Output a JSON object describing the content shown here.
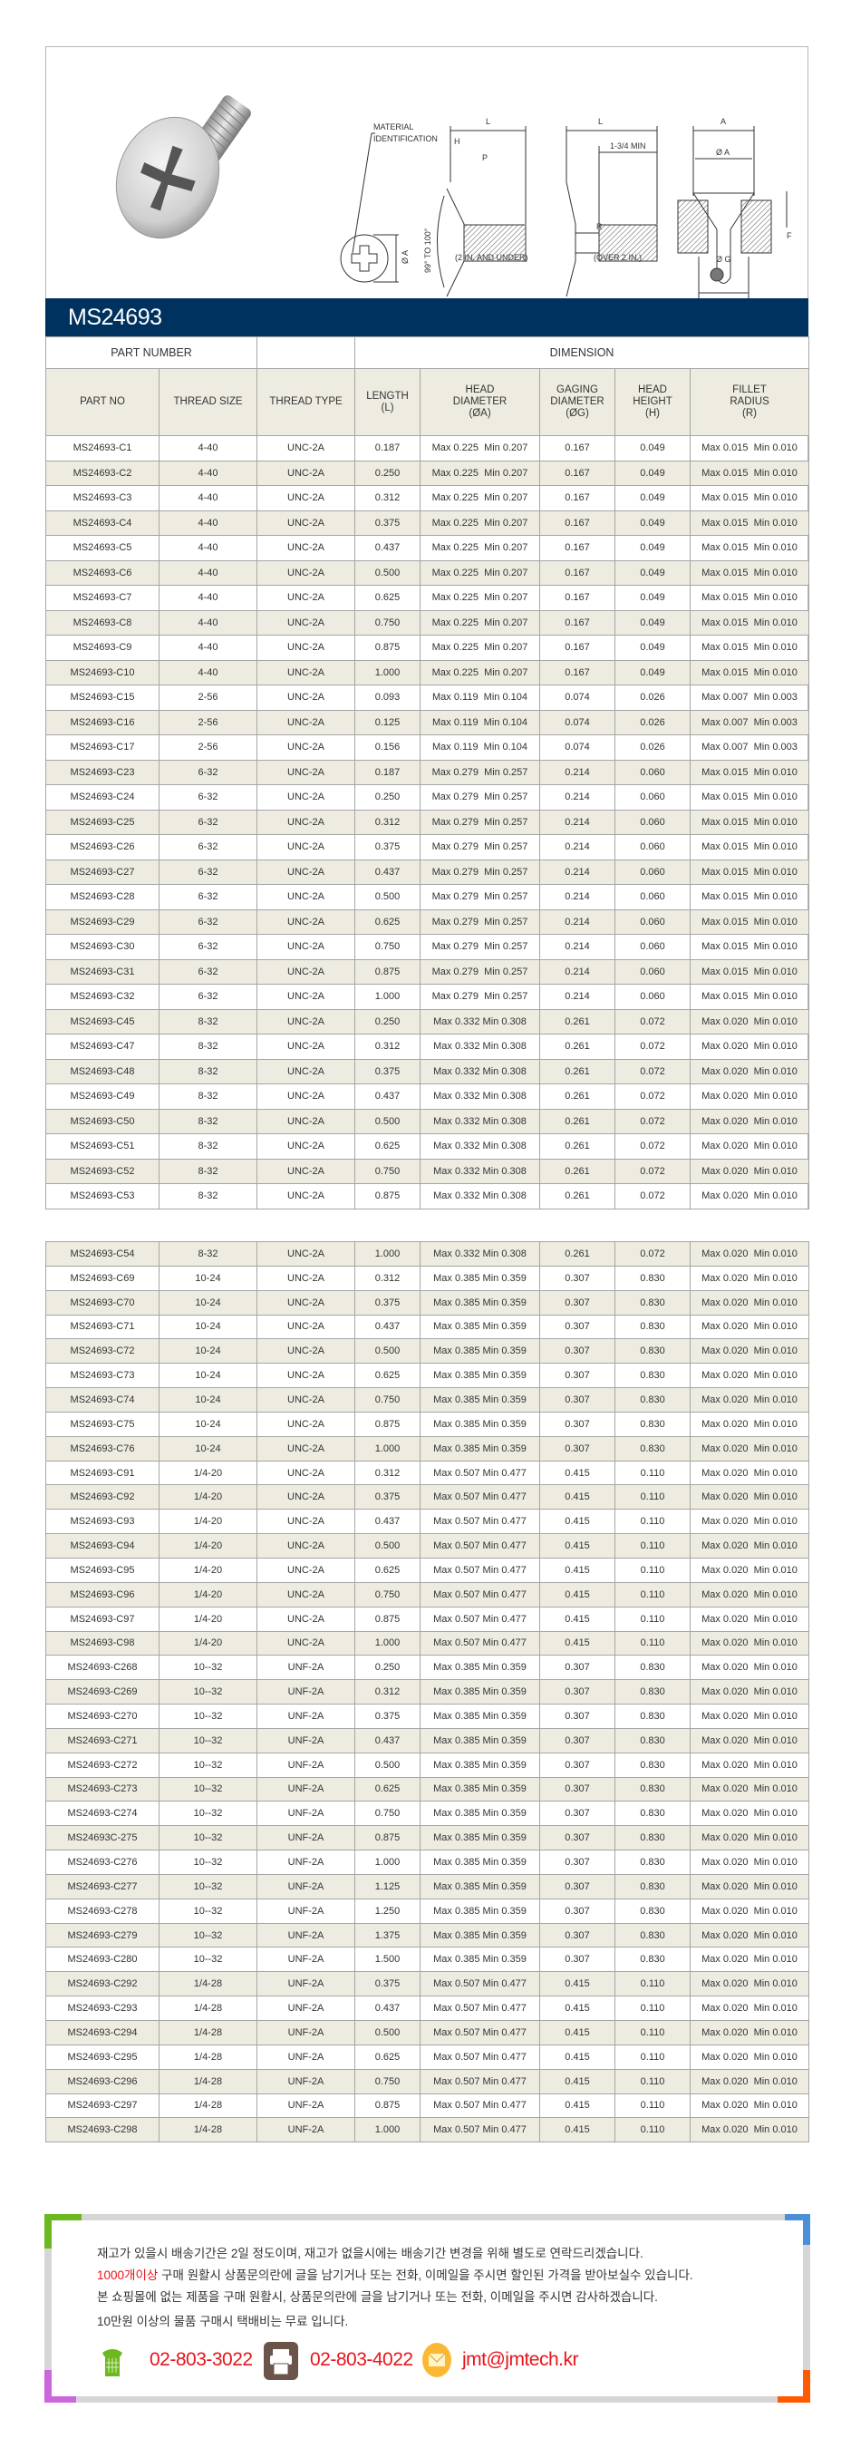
{
  "diagram": {
    "material_identification_1": "MATERIAL",
    "material_identification_2": "IDENTIFICATION",
    "label_L": "L",
    "label_H": "H",
    "label_P": "P",
    "label_A": "Ø A",
    "label_angle": "99° TO 100°",
    "label_under": "(2 IN. AND UNDER)",
    "label_min": "1-3/4 MIN",
    "label_R": "R",
    "label_over": "(OVER 2 IN.)",
    "label_A_top": "A",
    "label_G": "Ø G",
    "label_F": "F"
  },
  "banner": {
    "title": "MS24693"
  },
  "table": {
    "group_headers": {
      "part_number": "PART NUMBER",
      "empty": "",
      "dimension": "DIMENSION"
    },
    "columns": [
      "PART NO",
      "THREAD SIZE",
      "THREAD TYPE",
      "LENGTH\n(L)",
      "HEAD\nDIAMETER\n(ØA)",
      "GAGING\nDIAMETER\n(ØG)",
      "HEAD\nHEIGHT\n(H)",
      "FILLET\nRADIUS\n(R)"
    ],
    "rows_section1": [
      [
        "MS24693-C1",
        "4-40",
        "UNC-2A",
        "0.187",
        "Max 0.225  Min 0.207",
        "0.167",
        "0.049",
        "Max 0.015  Min 0.010"
      ],
      [
        "MS24693-C2",
        "4-40",
        "UNC-2A",
        "0.250",
        "Max 0.225  Min 0.207",
        "0.167",
        "0.049",
        "Max 0.015  Min 0.010"
      ],
      [
        "MS24693-C3",
        "4-40",
        "UNC-2A",
        "0.312",
        "Max 0.225  Min 0.207",
        "0.167",
        "0.049",
        "Max 0.015  Min 0.010"
      ],
      [
        "MS24693-C4",
        "4-40",
        "UNC-2A",
        "0.375",
        "Max 0.225  Min 0.207",
        "0.167",
        "0.049",
        "Max 0.015  Min 0.010"
      ],
      [
        "MS24693-C5",
        "4-40",
        "UNC-2A",
        "0.437",
        "Max 0.225  Min 0.207",
        "0.167",
        "0.049",
        "Max 0.015  Min 0.010"
      ],
      [
        "MS24693-C6",
        "4-40",
        "UNC-2A",
        "0.500",
        "Max 0.225  Min 0.207",
        "0.167",
        "0.049",
        "Max 0.015  Min 0.010"
      ],
      [
        "MS24693-C7",
        "4-40",
        "UNC-2A",
        "0.625",
        "Max 0.225  Min 0.207",
        "0.167",
        "0.049",
        "Max 0.015  Min 0.010"
      ],
      [
        "MS24693-C8",
        "4-40",
        "UNC-2A",
        "0.750",
        "Max 0.225  Min 0.207",
        "0.167",
        "0.049",
        "Max 0.015  Min 0.010"
      ],
      [
        "MS24693-C9",
        "4-40",
        "UNC-2A",
        "0.875",
        "Max 0.225  Min 0.207",
        "0.167",
        "0.049",
        "Max 0.015  Min 0.010"
      ],
      [
        "MS24693-C10",
        "4-40",
        "UNC-2A",
        "1.000",
        "Max 0.225  Min 0.207",
        "0.167",
        "0.049",
        "Max 0.015  Min 0.010"
      ],
      [
        "MS24693-C15",
        "2-56",
        "UNC-2A",
        "0.093",
        "Max 0.119  Min 0.104",
        "0.074",
        "0.026",
        "Max 0.007  Min 0.003"
      ],
      [
        "MS24693-C16",
        "2-56",
        "UNC-2A",
        "0.125",
        "Max 0.119  Min 0.104",
        "0.074",
        "0.026",
        "Max 0.007  Min 0.003"
      ],
      [
        "MS24693-C17",
        "2-56",
        "UNC-2A",
        "0.156",
        "Max 0.119  Min 0.104",
        "0.074",
        "0.026",
        "Max 0.007  Min 0.003"
      ],
      [
        "MS24693-C23",
        "6-32",
        "UNC-2A",
        "0.187",
        "Max 0.279  Min 0.257",
        "0.214",
        "0.060",
        "Max 0.015  Min 0.010"
      ],
      [
        "MS24693-C24",
        "6-32",
        "UNC-2A",
        "0.250",
        "Max 0.279  Min 0.257",
        "0.214",
        "0.060",
        "Max 0.015  Min 0.010"
      ],
      [
        "MS24693-C25",
        "6-32",
        "UNC-2A",
        "0.312",
        "Max 0.279  Min 0.257",
        "0.214",
        "0.060",
        "Max 0.015  Min 0.010"
      ],
      [
        "MS24693-C26",
        "6-32",
        "UNC-2A",
        "0.375",
        "Max 0.279  Min 0.257",
        "0.214",
        "0.060",
        "Max 0.015  Min 0.010"
      ],
      [
        "MS24693-C27",
        "6-32",
        "UNC-2A",
        "0.437",
        "Max 0.279  Min 0.257",
        "0.214",
        "0.060",
        "Max 0.015  Min 0.010"
      ],
      [
        "MS24693-C28",
        "6-32",
        "UNC-2A",
        "0.500",
        "Max 0.279  Min 0.257",
        "0.214",
        "0.060",
        "Max 0.015  Min 0.010"
      ],
      [
        "MS24693-C29",
        "6-32",
        "UNC-2A",
        "0.625",
        "Max 0.279  Min 0.257",
        "0.214",
        "0.060",
        "Max 0.015  Min 0.010"
      ],
      [
        "MS24693-C30",
        "6-32",
        "UNC-2A",
        "0.750",
        "Max 0.279  Min 0.257",
        "0.214",
        "0.060",
        "Max 0.015  Min 0.010"
      ],
      [
        "MS24693-C31",
        "6-32",
        "UNC-2A",
        "0.875",
        "Max 0.279  Min 0.257",
        "0.214",
        "0.060",
        "Max 0.015  Min 0.010"
      ],
      [
        "MS24693-C32",
        "6-32",
        "UNC-2A",
        "1.000",
        "Max 0.279  Min 0.257",
        "0.214",
        "0.060",
        "Max 0.015  Min 0.010"
      ],
      [
        "MS24693-C45",
        "8-32",
        "UNC-2A",
        "0.250",
        "Max 0.332 Min 0.308",
        "0.261",
        "0.072",
        "Max 0.020  Min 0.010"
      ],
      [
        "MS24693-C47",
        "8-32",
        "UNC-2A",
        "0.312",
        "Max 0.332 Min 0.308",
        "0.261",
        "0.072",
        "Max 0.020  Min 0.010"
      ],
      [
        "MS24693-C48",
        "8-32",
        "UNC-2A",
        "0.375",
        "Max 0.332 Min 0.308",
        "0.261",
        "0.072",
        "Max 0.020  Min 0.010"
      ],
      [
        "MS24693-C49",
        "8-32",
        "UNC-2A",
        "0.437",
        "Max 0.332 Min 0.308",
        "0.261",
        "0.072",
        "Max 0.020  Min 0.010"
      ],
      [
        "MS24693-C50",
        "8-32",
        "UNC-2A",
        "0.500",
        "Max 0.332 Min 0.308",
        "0.261",
        "0.072",
        "Max 0.020  Min 0.010"
      ],
      [
        "MS24693-C51",
        "8-32",
        "UNC-2A",
        "0.625",
        "Max 0.332 Min 0.308",
        "0.261",
        "0.072",
        "Max 0.020  Min 0.010"
      ],
      [
        "MS24693-C52",
        "8-32",
        "UNC-2A",
        "0.750",
        "Max 0.332 Min 0.308",
        "0.261",
        "0.072",
        "Max 0.020  Min 0.010"
      ],
      [
        "MS24693-C53",
        "8-32",
        "UNC-2A",
        "0.875",
        "Max 0.332 Min 0.308",
        "0.261",
        "0.072",
        "Max 0.020  Min 0.010"
      ]
    ],
    "rows_section2": [
      [
        "MS24693-C54",
        "8-32",
        "UNC-2A",
        "1.000",
        "Max 0.332 Min 0.308",
        "0.261",
        "0.072",
        "Max 0.020  Min 0.010"
      ],
      [
        "MS24693-C69",
        "10-24",
        "UNC-2A",
        "0.312",
        "Max 0.385 Min 0.359",
        "0.307",
        "0.830",
        "Max 0.020  Min 0.010"
      ],
      [
        "MS24693-C70",
        "10-24",
        "UNC-2A",
        "0.375",
        "Max 0.385 Min 0.359",
        "0.307",
        "0.830",
        "Max 0.020  Min 0.010"
      ],
      [
        "MS24693-C71",
        "10-24",
        "UNC-2A",
        "0.437",
        "Max 0.385 Min 0.359",
        "0.307",
        "0.830",
        "Max 0.020  Min 0.010"
      ],
      [
        "MS24693-C72",
        "10-24",
        "UNC-2A",
        "0.500",
        "Max 0.385 Min 0.359",
        "0.307",
        "0.830",
        "Max 0.020  Min 0.010"
      ],
      [
        "MS24693-C73",
        "10-24",
        "UNC-2A",
        "0.625",
        "Max 0.385 Min 0.359",
        "0.307",
        "0.830",
        "Max 0.020  Min 0.010"
      ],
      [
        "MS24693-C74",
        "10-24",
        "UNC-2A",
        "0.750",
        "Max 0.385 Min 0.359",
        "0.307",
        "0.830",
        "Max 0.020  Min 0.010"
      ],
      [
        "MS24693-C75",
        "10-24",
        "UNC-2A",
        "0.875",
        "Max 0.385 Min 0.359",
        "0.307",
        "0.830",
        "Max 0.020  Min 0.010"
      ],
      [
        "MS24693-C76",
        "10-24",
        "UNC-2A",
        "1.000",
        "Max 0.385 Min 0.359",
        "0.307",
        "0.830",
        "Max 0.020  Min 0.010"
      ],
      [
        "MS24693-C91",
        "1/4-20",
        "UNC-2A",
        "0.312",
        "Max 0.507 Min 0.477",
        "0.415",
        "0.110",
        "Max 0.020  Min 0.010"
      ],
      [
        "MS24693-C92",
        "1/4-20",
        "UNC-2A",
        "0.375",
        "Max 0.507 Min 0.477",
        "0.415",
        "0.110",
        "Max 0.020  Min 0.010"
      ],
      [
        "MS24693-C93",
        "1/4-20",
        "UNC-2A",
        "0.437",
        "Max 0.507 Min 0.477",
        "0.415",
        "0.110",
        "Max 0.020  Min 0.010"
      ],
      [
        "MS24693-C94",
        "1/4-20",
        "UNC-2A",
        "0.500",
        "Max 0.507 Min 0.477",
        "0.415",
        "0.110",
        "Max 0.020  Min 0.010"
      ],
      [
        "MS24693-C95",
        "1/4-20",
        "UNC-2A",
        "0.625",
        "Max 0.507 Min 0.477",
        "0.415",
        "0.110",
        "Max 0.020  Min 0.010"
      ],
      [
        "MS24693-C96",
        "1/4-20",
        "UNC-2A",
        "0.750",
        "Max 0.507 Min 0.477",
        "0.415",
        "0.110",
        "Max 0.020  Min 0.010"
      ],
      [
        "MS24693-C97",
        "1/4-20",
        "UNC-2A",
        "0.875",
        "Max 0.507 Min 0.477",
        "0.415",
        "0.110",
        "Max 0.020  Min 0.010"
      ],
      [
        "MS24693-C98",
        "1/4-20",
        "UNC-2A",
        "1.000",
        "Max 0.507 Min 0.477",
        "0.415",
        "0.110",
        "Max 0.020  Min 0.010"
      ],
      [
        "MS24693-C268",
        "10--32",
        "UNF-2A",
        "0.250",
        "Max 0.385 Min 0.359",
        "0.307",
        "0.830",
        "Max 0.020  Min 0.010"
      ],
      [
        "MS24693-C269",
        "10--32",
        "UNF-2A",
        "0.312",
        "Max 0.385 Min 0.359",
        "0.307",
        "0.830",
        "Max 0.020  Min 0.010"
      ],
      [
        "MS24693-C270",
        "10--32",
        "UNF-2A",
        "0.375",
        "Max 0.385 Min 0.359",
        "0.307",
        "0.830",
        "Max 0.020  Min 0.010"
      ],
      [
        "MS24693-C271",
        "10--32",
        "UNF-2A",
        "0.437",
        "Max 0.385 Min 0.359",
        "0.307",
        "0.830",
        "Max 0.020  Min 0.010"
      ],
      [
        "MS24693-C272",
        "10--32",
        "UNF-2A",
        "0.500",
        "Max 0.385 Min 0.359",
        "0.307",
        "0.830",
        "Max 0.020  Min 0.010"
      ],
      [
        "MS24693-C273",
        "10--32",
        "UNF-2A",
        "0.625",
        "Max 0.385 Min 0.359",
        "0.307",
        "0.830",
        "Max 0.020  Min 0.010"
      ],
      [
        "MS24693-C274",
        "10--32",
        "UNF-2A",
        "0.750",
        "Max 0.385 Min 0.359",
        "0.307",
        "0.830",
        "Max 0.020  Min 0.010"
      ],
      [
        "MS24693C-275",
        "10--32",
        "UNF-2A",
        "0.875",
        "Max 0.385 Min 0.359",
        "0.307",
        "0.830",
        "Max 0.020  Min 0.010"
      ],
      [
        "MS24693-C276",
        "10--32",
        "UNF-2A",
        "1.000",
        "Max 0.385 Min 0.359",
        "0.307",
        "0.830",
        "Max 0.020  Min 0.010"
      ],
      [
        "MS24693-C277",
        "10--32",
        "UNF-2A",
        "1.125",
        "Max 0.385 Min 0.359",
        "0.307",
        "0.830",
        "Max 0.020  Min 0.010"
      ],
      [
        "MS24693-C278",
        "10--32",
        "UNF-2A",
        "1.250",
        "Max 0.385 Min 0.359",
        "0.307",
        "0.830",
        "Max 0.020  Min 0.010"
      ],
      [
        "MS24693-C279",
        "10--32",
        "UNF-2A",
        "1.375",
        "Max 0.385 Min 0.359",
        "0.307",
        "0.830",
        "Max 0.020  Min 0.010"
      ],
      [
        "MS24693-C280",
        "10--32",
        "UNF-2A",
        "1.500",
        "Max 0.385 Min 0.359",
        "0.307",
        "0.830",
        "Max 0.020  Min 0.010"
      ],
      [
        "MS24693-C292",
        "1/4-28",
        "UNF-2A",
        "0.375",
        "Max 0.507 Min 0.477",
        "0.415",
        "0.110",
        "Max 0.020  Min 0.010"
      ],
      [
        "MS24693-C293",
        "1/4-28",
        "UNF-2A",
        "0.437",
        "Max 0.507 Min 0.477",
        "0.415",
        "0.110",
        "Max 0.020  Min 0.010"
      ],
      [
        "MS24693-C294",
        "1/4-28",
        "UNF-2A",
        "0.500",
        "Max 0.507 Min 0.477",
        "0.415",
        "0.110",
        "Max 0.020  Min 0.010"
      ],
      [
        "MS24693-C295",
        "1/4-28",
        "UNF-2A",
        "0.625",
        "Max 0.507 Min 0.477",
        "0.415",
        "0.110",
        "Max 0.020  Min 0.010"
      ],
      [
        "MS24693-C296",
        "1/4-28",
        "UNF-2A",
        "0.750",
        "Max 0.507 Min 0.477",
        "0.415",
        "0.110",
        "Max 0.020  Min 0.010"
      ],
      [
        "MS24693-C297",
        "1/4-28",
        "UNF-2A",
        "0.875",
        "Max 0.507 Min 0.477",
        "0.415",
        "0.110",
        "Max 0.020  Min 0.010"
      ],
      [
        "MS24693-C298",
        "1/4-28",
        "UNF-2A",
        "1.000",
        "Max 0.507 Min 0.477",
        "0.415",
        "0.110",
        "Max 0.020  Min 0.010"
      ]
    ]
  },
  "notice": {
    "line1": "재고가 있을시 배송기간은 2일 정도이며, 재고가 없을시에는 배송기간 변경을 위해 별도로 연락드리겠습니다.",
    "line2_highlight": "1000개이상",
    "line2_rest": " 구매 원활시 상품문의란에 글을 남기거나 또는 전화, 이메일을 주시면 할인된 가격을 받아보실수 있습니다.",
    "line3": "본 쇼핑몰에 없는 제품을 구매 원활시, 상품문의란에 글을 남기거나 또는 전화, 이메일을 주시면 감사하겠습니다.",
    "line4": "10만원 이상의 물품 구매시 택배비는 무료 입니다.",
    "phone": "02-803-3022",
    "fax": "02-803-4022",
    "email": "jmt@jmtech.kr",
    "icons": {
      "phone": "phone-icon",
      "fax": "fax-icon",
      "email": "mail-icon"
    },
    "colors": {
      "corner_tl": "#6cb81e",
      "corner_tr": "#4a8fd8",
      "corner_bl": "#cc66dd",
      "corner_br": "#ff5a00",
      "highlight": "#e8141a"
    }
  },
  "colors": {
    "banner": "#00325f",
    "row_alt": "#eeece1"
  }
}
